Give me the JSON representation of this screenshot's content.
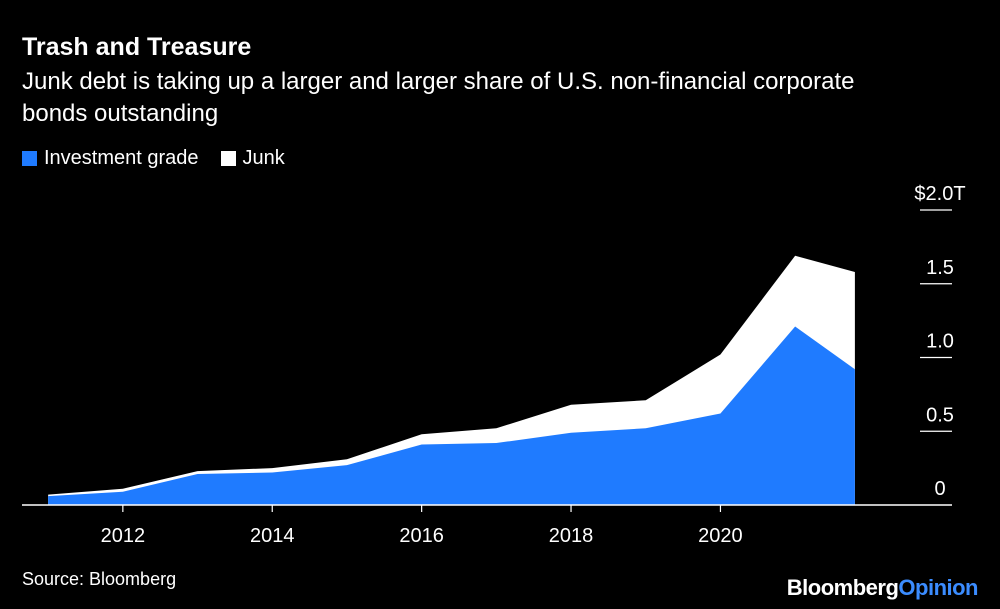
{
  "chart_data": {
    "type": "area",
    "title": "Trash and Treasure",
    "subtitle": "Junk debt is taking up a larger and larger share of U.S. non-financial corporate bonds outstanding",
    "x": [
      2011,
      2012,
      2013,
      2014,
      2015,
      2016,
      2017,
      2018,
      2019,
      2020,
      2021,
      2021.8
    ],
    "series": [
      {
        "name": "Investment grade",
        "color": "#1f7bff",
        "values": [
          0.06,
          0.09,
          0.21,
          0.22,
          0.27,
          0.41,
          0.42,
          0.49,
          0.52,
          0.62,
          1.21,
          0.92
        ]
      },
      {
        "name": "Junk",
        "color": "#ffffff",
        "values": [
          0.01,
          0.02,
          0.02,
          0.03,
          0.04,
          0.07,
          0.1,
          0.19,
          0.19,
          0.4,
          0.48,
          0.66
        ]
      }
    ],
    "stacked": true,
    "xticks": [
      "2012",
      "2014",
      "2016",
      "2018",
      "2020"
    ],
    "yticks": [
      "$2.0T",
      "1.5",
      "1.0",
      "0.5",
      "0"
    ],
    "ylim": [
      0,
      2.0
    ],
    "xlim": [
      2010.65,
      2023.1
    ]
  },
  "source": "Source: Bloomberg",
  "brand": {
    "part1": "Bloomberg",
    "part2": "Opinion"
  }
}
